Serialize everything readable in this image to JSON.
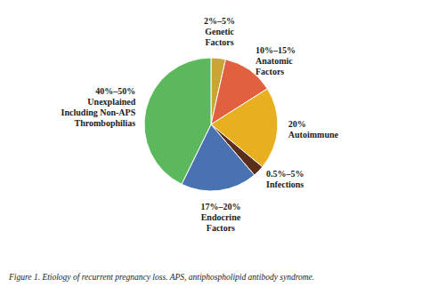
{
  "chart_data": {
    "type": "pie",
    "categories": [
      "2%–5%\nGenetic\nFactors",
      "10%–15%\nAnatomic\nFactors",
      "20%\nAutoimmune",
      "0.5%–5%\nInfections",
      "17%–20%\nEndocrine\nFactors",
      "40%–50%\nUnexplained\nIncluding Non-APS\nThrombophilias"
    ],
    "values": [
      3.5,
      12.5,
      20.0,
      2.75,
      18.5,
      42.75
    ],
    "colors": [
      "#C8A535",
      "#E06040",
      "#E8B020",
      "#5A2E1A",
      "#4A72B0",
      "#5CB85C"
    ],
    "caption": "Figure 1. Etiology of recurrent pregnancy loss. APS, antiphospholipid antibody syndrome."
  }
}
